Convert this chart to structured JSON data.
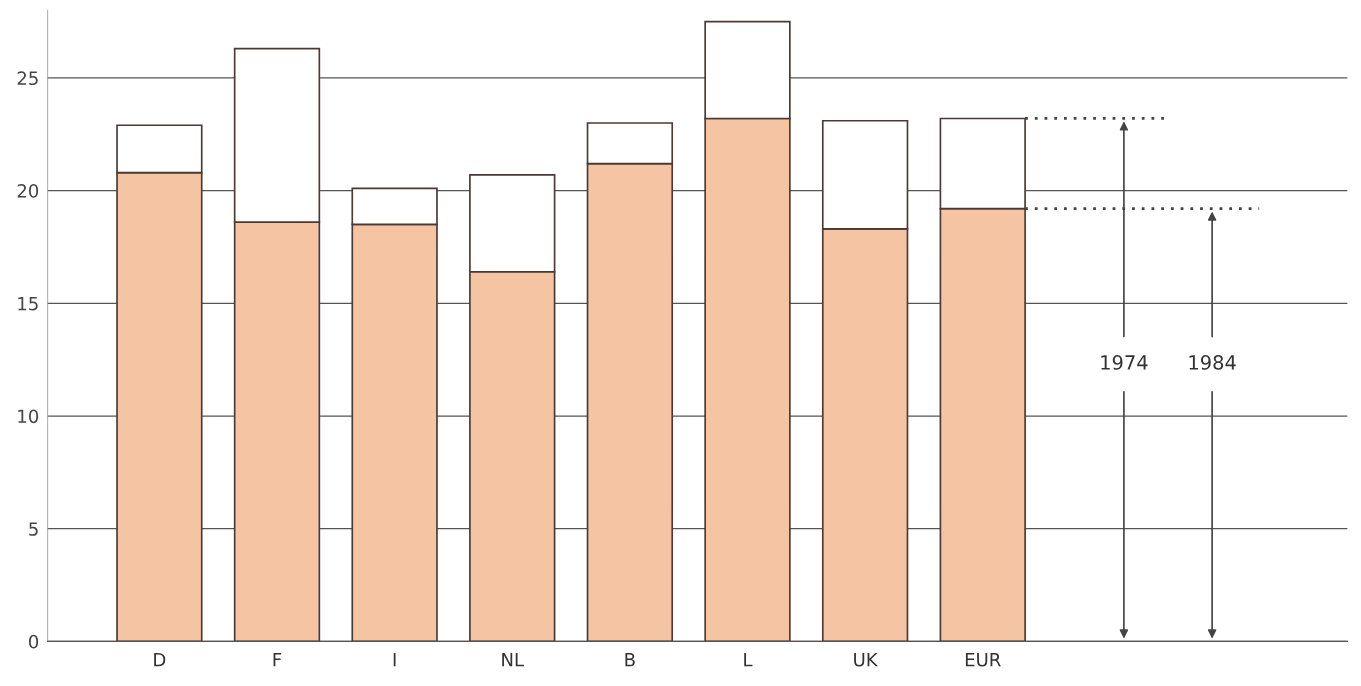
{
  "chart_data": {
    "type": "bar",
    "categories": [
      "D",
      "F",
      "I",
      "NL",
      "B",
      "L",
      "UK",
      "EUR"
    ],
    "stacked": true,
    "series": [
      {
        "color": "#f5c4a2",
        "values": [
          20.8,
          18.6,
          18.5,
          16.4,
          21.2,
          23.2,
          18.3,
          19.2
        ]
      },
      {
        "color": "#ffffff",
        "values": [
          2.1,
          7.7,
          1.6,
          4.3,
          1.8,
          4.3,
          4.8,
          4.0
        ]
      }
    ],
    "annotations": [
      "1974",
      "1984"
    ],
    "ylim": [
      0,
      28
    ],
    "yticks": [
      0,
      5,
      10,
      15,
      20,
      25
    ],
    "grid": "y",
    "legend": false
  }
}
